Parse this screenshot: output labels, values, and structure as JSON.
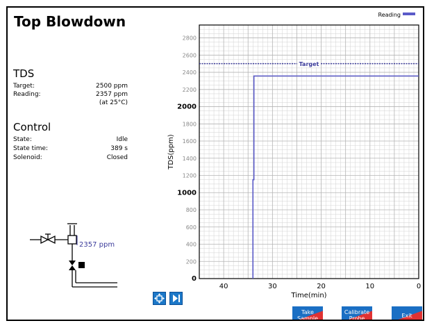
{
  "title": "Top Blowdown",
  "tds": {
    "heading": "TDS",
    "rows": [
      {
        "label": "Target:",
        "value": "2500 ppm"
      },
      {
        "label": "Reading:",
        "value": "2357 ppm"
      },
      {
        "label": "",
        "value": "(at 25°C)"
      }
    ]
  },
  "control": {
    "heading": "Control",
    "rows": [
      {
        "label": "State:",
        "value": "Idle"
      },
      {
        "label": "State time:",
        "value": "389 s"
      },
      {
        "label": "Solenoid:",
        "value": "Closed"
      }
    ]
  },
  "diagram": {
    "reading_label": "2357 ppm"
  },
  "legend_label": "Reading",
  "target_label": "Target",
  "buttons": {
    "take_sample": {
      "line1": "Take",
      "line2": "Sample"
    },
    "calibrate_probe": {
      "line1": "Calibrate",
      "line2": "Probe"
    },
    "exit": {
      "label": "Exit"
    }
  },
  "colors": {
    "series": "#5a5ac8",
    "target": "#3a3a9a",
    "button_top": "#1a6fc4",
    "button_bottom": "#e03232",
    "nav": "#1c78c8"
  },
  "icons": {
    "fit": "expand-arrows-icon",
    "forward": "skip-forward-icon"
  },
  "chart_data": {
    "type": "line",
    "xlabel": "Time(min)",
    "ylabel": "TDS(ppm)",
    "xlim": [
      45,
      0
    ],
    "ylim": [
      0,
      2950
    ],
    "x_ticks": [
      40,
      30,
      20,
      10,
      0
    ],
    "y_ticks": [
      0,
      200,
      400,
      600,
      800,
      1000,
      1200,
      1400,
      1600,
      1800,
      2000,
      2200,
      2400,
      2600,
      2800
    ],
    "target": 2500,
    "series": [
      {
        "name": "Reading",
        "x": [
          34,
          34,
          33.8,
          33.8,
          0
        ],
        "y": [
          0,
          1150,
          1150,
          2357,
          2357
        ]
      }
    ],
    "grid": true,
    "legend": "top-right"
  }
}
